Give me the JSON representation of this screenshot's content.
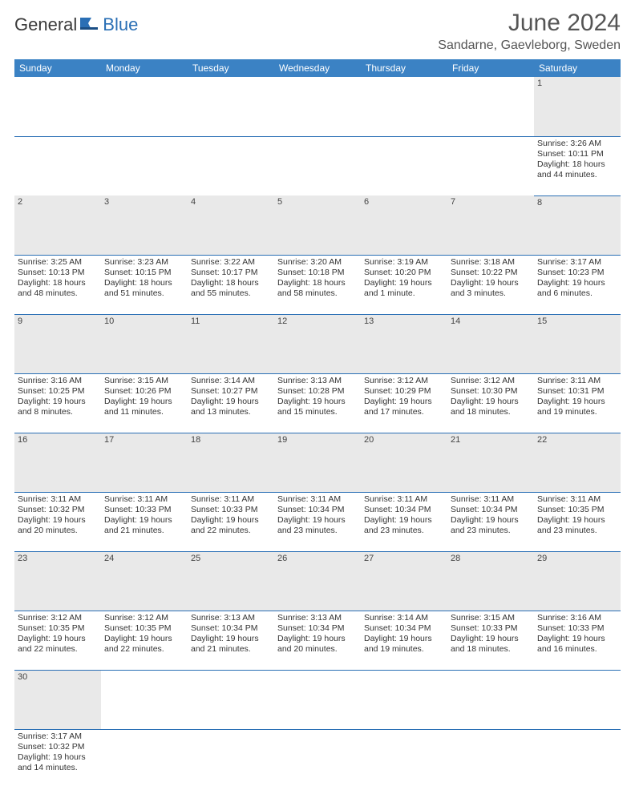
{
  "logo": {
    "text1": "General",
    "text2": "Blue"
  },
  "title": "June 2024",
  "location": "Sandarne, Gaevleborg, Sweden",
  "day_headers": [
    "Sunday",
    "Monday",
    "Tuesday",
    "Wednesday",
    "Thursday",
    "Friday",
    "Saturday"
  ],
  "colors": {
    "header_bg": "#3b82c4",
    "daynum_bg": "#e9e9e9",
    "rule": "#2a6fb5"
  },
  "weeks": [
    [
      null,
      null,
      null,
      null,
      null,
      null,
      {
        "n": "1",
        "sr": "3:26 AM",
        "ss": "10:11 PM",
        "dl": "18 hours and 44 minutes."
      }
    ],
    [
      {
        "n": "2",
        "sr": "3:25 AM",
        "ss": "10:13 PM",
        "dl": "18 hours and 48 minutes."
      },
      {
        "n": "3",
        "sr": "3:23 AM",
        "ss": "10:15 PM",
        "dl": "18 hours and 51 minutes."
      },
      {
        "n": "4",
        "sr": "3:22 AM",
        "ss": "10:17 PM",
        "dl": "18 hours and 55 minutes."
      },
      {
        "n": "5",
        "sr": "3:20 AM",
        "ss": "10:18 PM",
        "dl": "18 hours and 58 minutes."
      },
      {
        "n": "6",
        "sr": "3:19 AM",
        "ss": "10:20 PM",
        "dl": "19 hours and 1 minute."
      },
      {
        "n": "7",
        "sr": "3:18 AM",
        "ss": "10:22 PM",
        "dl": "19 hours and 3 minutes."
      },
      {
        "n": "8",
        "sr": "3:17 AM",
        "ss": "10:23 PM",
        "dl": "19 hours and 6 minutes."
      }
    ],
    [
      {
        "n": "9",
        "sr": "3:16 AM",
        "ss": "10:25 PM",
        "dl": "19 hours and 8 minutes."
      },
      {
        "n": "10",
        "sr": "3:15 AM",
        "ss": "10:26 PM",
        "dl": "19 hours and 11 minutes."
      },
      {
        "n": "11",
        "sr": "3:14 AM",
        "ss": "10:27 PM",
        "dl": "19 hours and 13 minutes."
      },
      {
        "n": "12",
        "sr": "3:13 AM",
        "ss": "10:28 PM",
        "dl": "19 hours and 15 minutes."
      },
      {
        "n": "13",
        "sr": "3:12 AM",
        "ss": "10:29 PM",
        "dl": "19 hours and 17 minutes."
      },
      {
        "n": "14",
        "sr": "3:12 AM",
        "ss": "10:30 PM",
        "dl": "19 hours and 18 minutes."
      },
      {
        "n": "15",
        "sr": "3:11 AM",
        "ss": "10:31 PM",
        "dl": "19 hours and 19 minutes."
      }
    ],
    [
      {
        "n": "16",
        "sr": "3:11 AM",
        "ss": "10:32 PM",
        "dl": "19 hours and 20 minutes."
      },
      {
        "n": "17",
        "sr": "3:11 AM",
        "ss": "10:33 PM",
        "dl": "19 hours and 21 minutes."
      },
      {
        "n": "18",
        "sr": "3:11 AM",
        "ss": "10:33 PM",
        "dl": "19 hours and 22 minutes."
      },
      {
        "n": "19",
        "sr": "3:11 AM",
        "ss": "10:34 PM",
        "dl": "19 hours and 23 minutes."
      },
      {
        "n": "20",
        "sr": "3:11 AM",
        "ss": "10:34 PM",
        "dl": "19 hours and 23 minutes."
      },
      {
        "n": "21",
        "sr": "3:11 AM",
        "ss": "10:34 PM",
        "dl": "19 hours and 23 minutes."
      },
      {
        "n": "22",
        "sr": "3:11 AM",
        "ss": "10:35 PM",
        "dl": "19 hours and 23 minutes."
      }
    ],
    [
      {
        "n": "23",
        "sr": "3:12 AM",
        "ss": "10:35 PM",
        "dl": "19 hours and 22 minutes."
      },
      {
        "n": "24",
        "sr": "3:12 AM",
        "ss": "10:35 PM",
        "dl": "19 hours and 22 minutes."
      },
      {
        "n": "25",
        "sr": "3:13 AM",
        "ss": "10:34 PM",
        "dl": "19 hours and 21 minutes."
      },
      {
        "n": "26",
        "sr": "3:13 AM",
        "ss": "10:34 PM",
        "dl": "19 hours and 20 minutes."
      },
      {
        "n": "27",
        "sr": "3:14 AM",
        "ss": "10:34 PM",
        "dl": "19 hours and 19 minutes."
      },
      {
        "n": "28",
        "sr": "3:15 AM",
        "ss": "10:33 PM",
        "dl": "19 hours and 18 minutes."
      },
      {
        "n": "29",
        "sr": "3:16 AM",
        "ss": "10:33 PM",
        "dl": "19 hours and 16 minutes."
      }
    ],
    [
      {
        "n": "30",
        "sr": "3:17 AM",
        "ss": "10:32 PM",
        "dl": "19 hours and 14 minutes."
      },
      null,
      null,
      null,
      null,
      null,
      null
    ]
  ]
}
